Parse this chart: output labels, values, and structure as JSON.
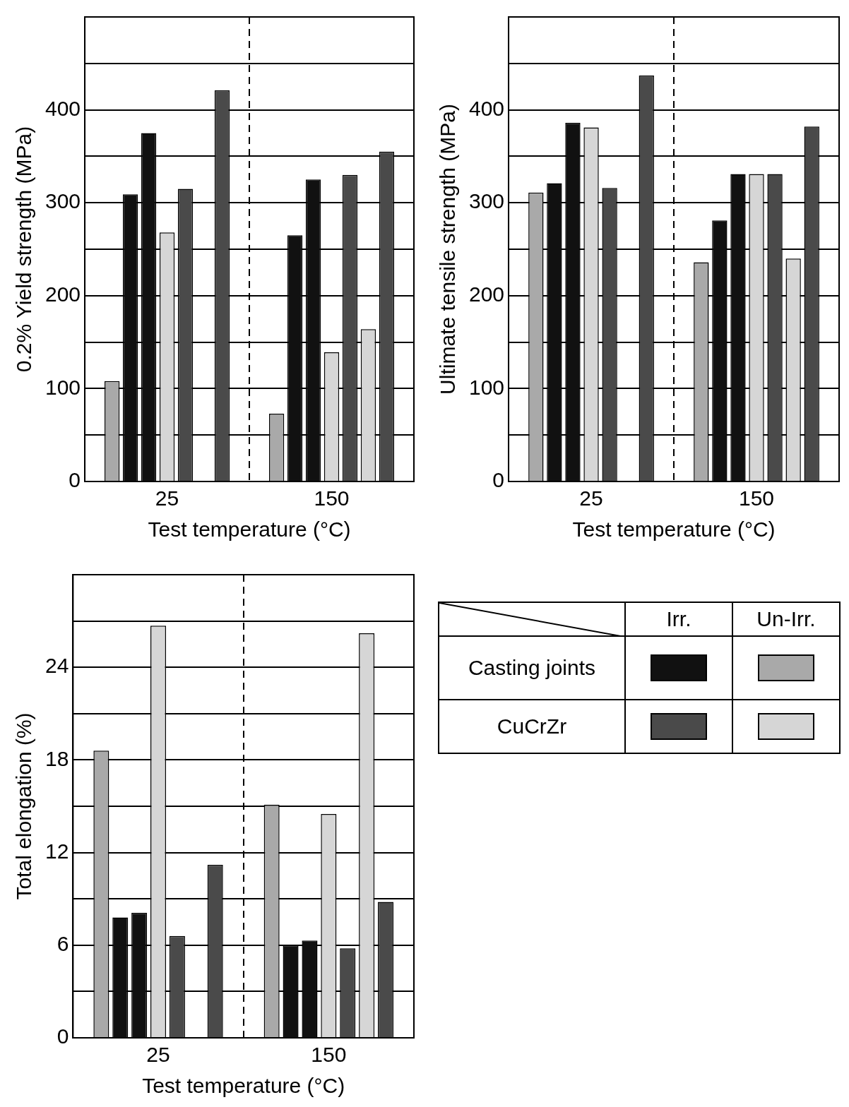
{
  "chart_data": [
    {
      "type": "bar",
      "ylabel": "0.2% Yield strength (MPa)",
      "xlabel": "Test temperature (°C)",
      "categories": [
        "25",
        "150"
      ],
      "grid": "y",
      "ylim": [
        0,
        500
      ],
      "yticks": [
        0,
        {
          "value": 50,
          "label": null
        },
        100,
        {
          "value": 150,
          "label": null
        },
        200,
        {
          "value": 250,
          "label": null
        },
        300,
        {
          "value": 350,
          "label": null
        },
        400,
        {
          "value": 450,
          "label": null
        },
        {
          "value": 500,
          "label": null
        }
      ],
      "series": [
        {
          "color": "#a9a9a9",
          "values": [
            108,
            73
          ]
        },
        {
          "color": "#111111",
          "values": [
            309,
            265
          ]
        },
        {
          "color": "#111111",
          "values": [
            375,
            325
          ]
        },
        {
          "color": "#d6d6d6",
          "values": [
            268,
            139
          ]
        },
        {
          "color": "#4a4a4a",
          "values": [
            315,
            330
          ]
        },
        {
          "color": "#d6d6d6",
          "values": [
            null,
            164
          ]
        },
        {
          "color": "#4a4a4a",
          "values": [
            421,
            355
          ]
        }
      ]
    },
    {
      "type": "bar",
      "ylabel": "Ultimate tensile strength (MPa)",
      "xlabel": "Test temperature (°C)",
      "categories": [
        "25",
        "150"
      ],
      "grid": "y",
      "ylim": [
        0,
        500
      ],
      "yticks": [
        0,
        {
          "value": 50,
          "label": null
        },
        100,
        {
          "value": 150,
          "label": null
        },
        200,
        {
          "value": 250,
          "label": null
        },
        300,
        {
          "value": 350,
          "label": null
        },
        400,
        {
          "value": 450,
          "label": null
        },
        {
          "value": 500,
          "label": null
        }
      ],
      "series": [
        {
          "color": "#a9a9a9",
          "values": [
            311,
            236
          ]
        },
        {
          "color": "#111111",
          "values": [
            321,
            281
          ]
        },
        {
          "color": "#111111",
          "values": [
            386,
            331
          ]
        },
        {
          "color": "#d6d6d6",
          "values": [
            381,
            331
          ]
        },
        {
          "color": "#4a4a4a",
          "values": [
            316,
            331
          ]
        },
        {
          "color": "#d6d6d6",
          "values": [
            null,
            240
          ]
        },
        {
          "color": "#4a4a4a",
          "values": [
            437,
            382
          ]
        }
      ]
    },
    {
      "type": "bar",
      "ylabel": "Total elongation (%)",
      "xlabel": "Test temperature (°C)",
      "categories": [
        "25",
        "150"
      ],
      "grid": "y",
      "ylim": [
        0,
        30
      ],
      "yticks": [
        0,
        {
          "value": 3,
          "label": null
        },
        6,
        {
          "value": 9,
          "label": null
        },
        12,
        {
          "value": 15,
          "label": null
        },
        18,
        {
          "value": 21,
          "label": null
        },
        24,
        {
          "value": 27,
          "label": null
        },
        {
          "value": 30,
          "label": null
        }
      ],
      "series": [
        {
          "color": "#a9a9a9",
          "values": [
            18.6,
            15.1
          ]
        },
        {
          "color": "#111111",
          "values": [
            7.8,
            6.0
          ]
        },
        {
          "color": "#111111",
          "values": [
            8.1,
            6.3
          ]
        },
        {
          "color": "#d6d6d6",
          "values": [
            26.7,
            14.5
          ]
        },
        {
          "color": "#4a4a4a",
          "values": [
            6.6,
            5.8
          ]
        },
        {
          "color": "#d6d6d6",
          "values": [
            null,
            26.2
          ]
        },
        {
          "color": "#4a4a4a",
          "values": [
            11.2,
            8.8
          ]
        }
      ]
    },
    {
      "type": "other",
      "annotations": [
        "Irr.",
        "Un-Irr.",
        "Casting joints",
        "CuCrZr"
      ]
    }
  ]
}
